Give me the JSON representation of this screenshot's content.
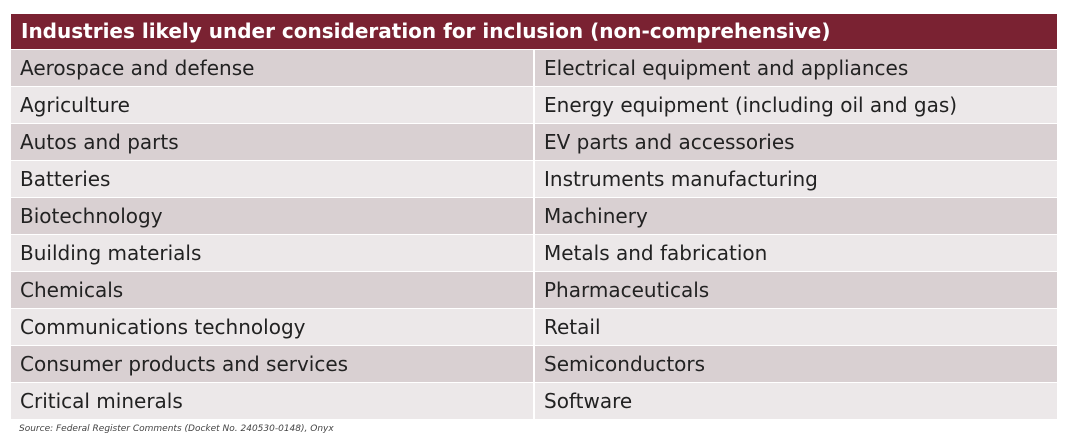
{
  "table": {
    "title": "Industries likely under consideration for inclusion (non-comprehensive)",
    "rows": [
      {
        "left": "Aerospace and defense",
        "right": "Electrical equipment and appliances"
      },
      {
        "left": "Agriculture",
        "right": "Energy equipment (including oil and gas)"
      },
      {
        "left": "Autos and parts",
        "right": "EV parts and accessories"
      },
      {
        "left": "Batteries",
        "right": "Instruments manufacturing"
      },
      {
        "left": "Biotechnology",
        "right": "Machinery"
      },
      {
        "left": "Building materials",
        "right": "Metals and fabrication"
      },
      {
        "left": "Chemicals",
        "right": "Pharmaceuticals"
      },
      {
        "left": "Communications technology",
        "right": "Retail"
      },
      {
        "left": "Consumer products and services",
        "right": "Semiconductors"
      },
      {
        "left": "Critical minerals",
        "right": "Software"
      }
    ]
  },
  "source": "Source: Federal Register Comments (Docket No. 240530-0148), Onyx",
  "colors": {
    "header_bg": "#7a2232",
    "row_dark": "#d9d0d2",
    "row_light": "#ece8e9"
  }
}
